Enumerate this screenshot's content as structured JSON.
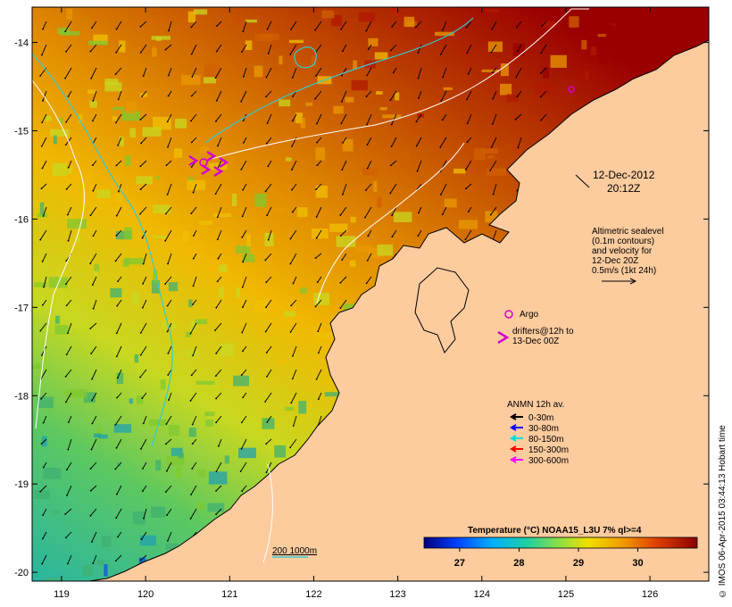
{
  "map": {
    "lon_ticks": [
      "119",
      "120",
      "121",
      "122",
      "123",
      "124",
      "125",
      "126"
    ],
    "lat_ticks": [
      "-14",
      "-15",
      "-16",
      "-17",
      "-18",
      "-19",
      "-20"
    ],
    "lon_range": [
      118.65,
      126.7
    ],
    "lat_range": [
      -20.1,
      -13.6
    ]
  },
  "annotations": {
    "date": "12-Dec-2012",
    "time": "20:12Z",
    "altimetry_lines": [
      "Altimetric sealevel",
      "(0.1m contours)",
      "and velocity for",
      "12-Dec 20Z",
      "0.5m/s (1kt 24h)"
    ],
    "argo_label": "Argo",
    "drifter_lines": [
      "drifters@12h to",
      "13-Dec 00Z"
    ],
    "anmn_title": "ANMN 12h av.",
    "depth_bands": [
      {
        "label": "0-30m",
        "color": "#000000"
      },
      {
        "label": "30-80m",
        "color": "#0000ff"
      },
      {
        "label": "80-150m",
        "color": "#00dddd"
      },
      {
        "label": "150-300m",
        "color": "#ff0000"
      },
      {
        "label": "300-600m",
        "color": "#ff00ff"
      }
    ],
    "isobath_label": "200  1000m"
  },
  "colorbar": {
    "title": "Temperature (°C) NOAA15_L3U 7% ql>=4",
    "ticks": [
      "27",
      "28",
      "29",
      "30"
    ],
    "range": [
      26.4,
      31.0
    ]
  },
  "credit": "© IMOS 06-Apr-2015 03:44:13 Hobart time",
  "colors": {
    "land": "#fccb9e",
    "warm": "#9a0000",
    "argo": "#d400d4",
    "isobath_cyan": "#33cccc"
  }
}
